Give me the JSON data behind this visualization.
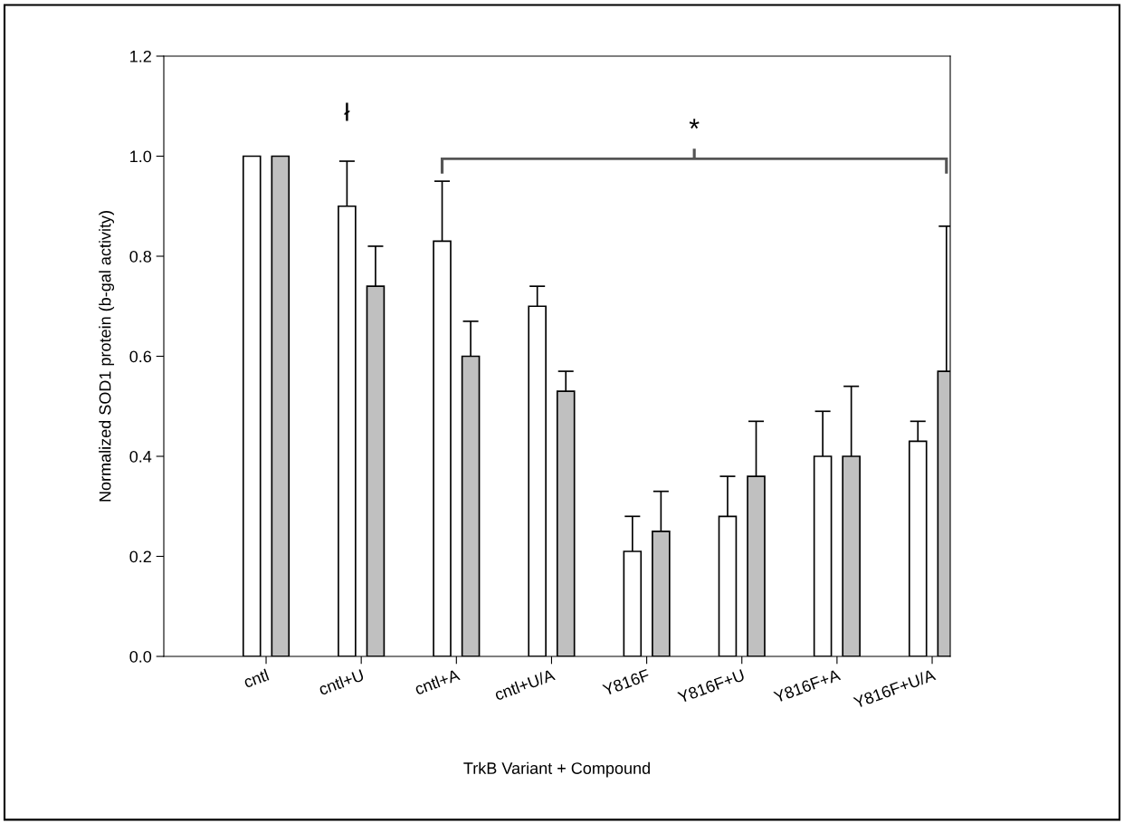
{
  "chart_data": {
    "type": "bar",
    "xlabel": "TrkB Variant + Compound",
    "ylabel": "Normalized SOD1 protein (b-gal activity)",
    "categories": [
      "cntl",
      "cntl+U",
      "cntl+A",
      "cntl+U/A",
      "Y816F",
      "Y816F+U",
      "Y816F+A",
      "Y816F+U/A"
    ],
    "series": [
      {
        "color": "#ffffff",
        "values": [
          1.0,
          0.9,
          0.83,
          0.7,
          0.21,
          0.28,
          0.4,
          0.43
        ],
        "errors": [
          null,
          [
            0.9,
            0.99
          ],
          [
            0.83,
            0.95
          ],
          [
            0.7,
            0.74
          ],
          [
            0.21,
            0.28
          ],
          [
            0.28,
            0.36
          ],
          [
            0.4,
            0.49
          ],
          [
            0.43,
            0.47
          ]
        ]
      },
      {
        "color": "#c0c0c0",
        "values": [
          1.0,
          0.74,
          0.6,
          0.53,
          0.25,
          0.36,
          0.4,
          0.57
        ],
        "errors": [
          null,
          [
            0.74,
            0.82
          ],
          [
            0.6,
            0.67
          ],
          [
            0.53,
            0.57
          ],
          [
            0.25,
            0.33
          ],
          [
            0.36,
            0.47
          ],
          [
            0.4,
            0.54
          ],
          [
            0.57,
            0.86
          ]
        ]
      }
    ],
    "ylim": [
      0,
      1.2
    ],
    "yticks": [
      {
        "value": 0,
        "label": "0.0"
      },
      {
        "value": 0.2,
        "label": "0.2"
      },
      {
        "value": 0.4,
        "label": "0.4"
      },
      {
        "value": 0.6,
        "label": "0.6"
      },
      {
        "value": 0.8,
        "label": "0.8"
      },
      {
        "value": 1.0,
        "label": "1.0"
      },
      {
        "value": 1.2,
        "label": "1.2"
      }
    ],
    "annotations": [
      "ł",
      "*"
    ],
    "grid": false,
    "legend": false
  }
}
